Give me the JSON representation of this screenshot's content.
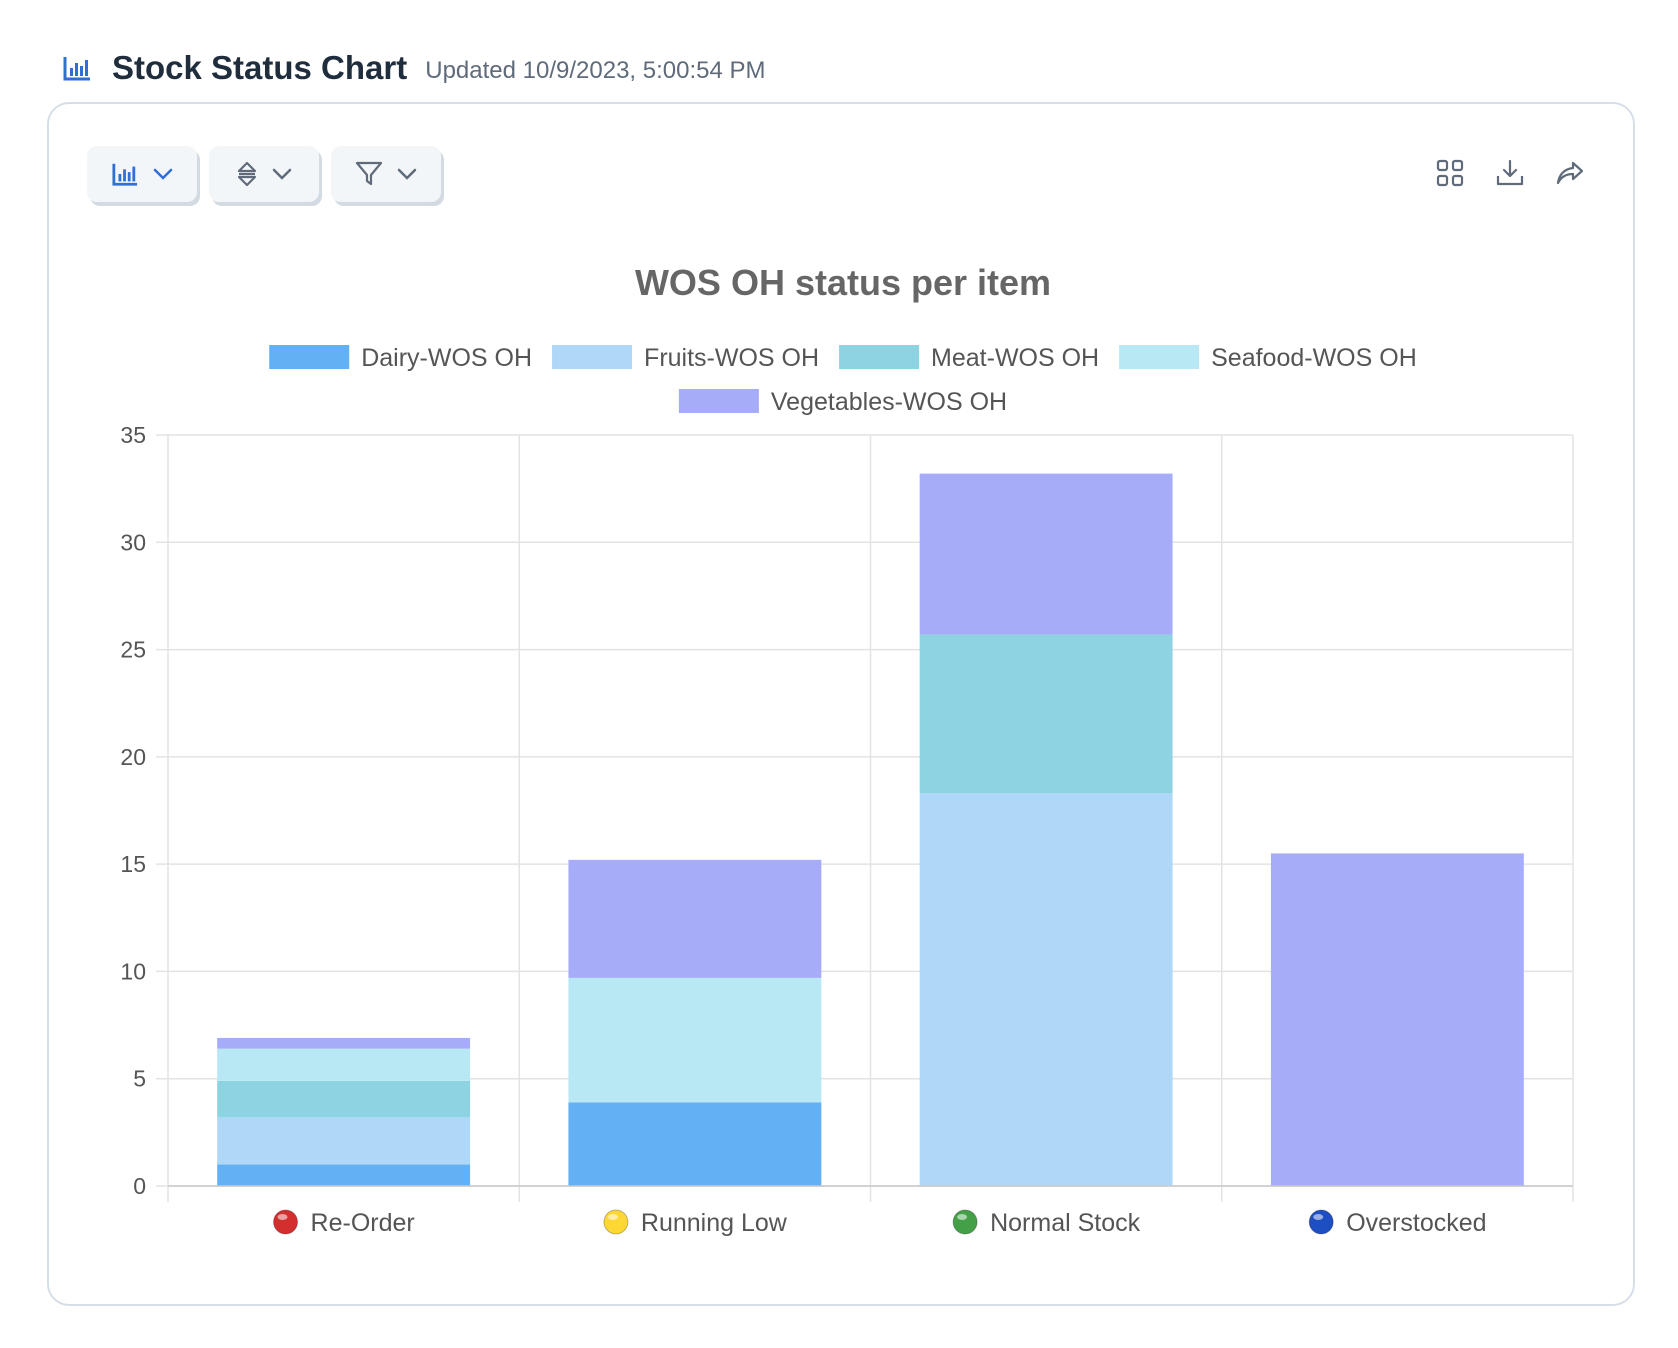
{
  "header": {
    "title": "Stock Status Chart",
    "updated": "Updated 10/9/2023, 5:00:54 PM",
    "icon": "bar-chart-icon"
  },
  "toolbar": {
    "buttons": [
      {
        "icon": "bar-chart-icon",
        "dropdown": "chevron-down-icon"
      },
      {
        "icon": "sort-icon",
        "dropdown": "chevron-down-icon"
      },
      {
        "icon": "filter-icon",
        "dropdown": "chevron-down-icon"
      }
    ],
    "actions": [
      "grid-icon",
      "download-icon",
      "share-icon"
    ]
  },
  "colors": {
    "accent": "#2f6fd6",
    "grid": "#e3e3e3",
    "axis_text": "#555555",
    "title_text": "#666666"
  },
  "chart_data": {
    "type": "bar",
    "stacked": true,
    "title": "WOS OH status per item",
    "categories": [
      "Re-Order",
      "Running Low",
      "Normal Stock",
      "Overstocked"
    ],
    "category_markers": [
      "#d32f2f",
      "#fdd835",
      "#43a047",
      "#1e4fc2"
    ],
    "series": [
      {
        "name": "Dairy-WOS OH",
        "color": "#64b0f5",
        "values": [
          1.0,
          3.9,
          0,
          0
        ]
      },
      {
        "name": "Fruits-WOS OH",
        "color": "#aed7f8",
        "values": [
          2.2,
          0,
          18.3,
          0
        ]
      },
      {
        "name": "Meat-WOS OH",
        "color": "#8dd3e2",
        "values": [
          1.7,
          0,
          7.4,
          0
        ]
      },
      {
        "name": "Seafood-WOS OH",
        "color": "#b8e8f3",
        "values": [
          1.5,
          5.8,
          0,
          0
        ]
      },
      {
        "name": "Vegetables-WOS OH",
        "color": "#a6acf7",
        "values": [
          0.5,
          5.5,
          7.5,
          15.5
        ]
      }
    ],
    "ylim": [
      0,
      35
    ],
    "yticks": [
      0,
      5,
      10,
      15,
      20,
      25,
      30,
      35
    ],
    "grid": true,
    "legend_position": "top"
  }
}
